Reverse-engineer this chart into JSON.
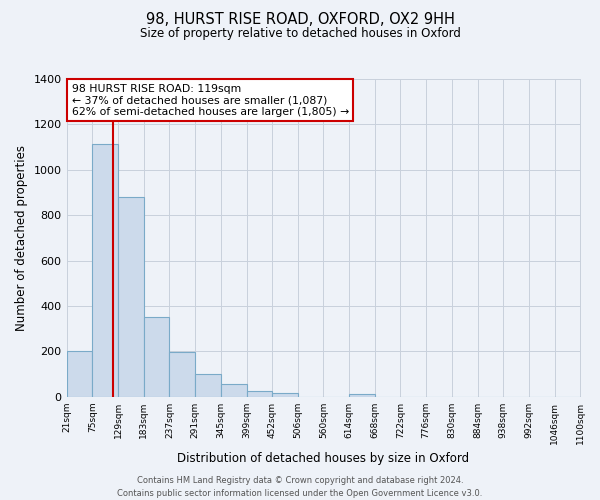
{
  "title": "98, HURST RISE ROAD, OXFORD, OX2 9HH",
  "subtitle": "Size of property relative to detached houses in Oxford",
  "xlabel": "Distribution of detached houses by size in Oxford",
  "ylabel": "Number of detached properties",
  "bar_color": "#ccdaeb",
  "bar_edge_color": "#7aaac8",
  "bin_edges": [
    21,
    75,
    129,
    183,
    237,
    291,
    345,
    399,
    452,
    506,
    560,
    614,
    668,
    722,
    776,
    830,
    884,
    938,
    992,
    1046,
    1100
  ],
  "bin_labels": [
    "21sqm",
    "75sqm",
    "129sqm",
    "183sqm",
    "237sqm",
    "291sqm",
    "345sqm",
    "399sqm",
    "452sqm",
    "506sqm",
    "560sqm",
    "614sqm",
    "668sqm",
    "722sqm",
    "776sqm",
    "830sqm",
    "884sqm",
    "938sqm",
    "992sqm",
    "1046sqm",
    "1100sqm"
  ],
  "counts": [
    200,
    1115,
    880,
    350,
    195,
    100,
    55,
    25,
    15,
    0,
    0,
    12,
    0,
    0,
    0,
    0,
    0,
    0,
    0,
    0
  ],
  "property_size": 119,
  "property_line_color": "#cc0000",
  "annotation_line1": "98 HURST RISE ROAD: 119sqm",
  "annotation_line2": "← 37% of detached houses are smaller (1,087)",
  "annotation_line3": "62% of semi-detached houses are larger (1,805) →",
  "annotation_box_color": "#ffffff",
  "annotation_box_edge": "#cc0000",
  "ylim": [
    0,
    1400
  ],
  "yticks": [
    0,
    200,
    400,
    600,
    800,
    1000,
    1200,
    1400
  ],
  "footer_line1": "Contains HM Land Registry data © Crown copyright and database right 2024.",
  "footer_line2": "Contains public sector information licensed under the Open Government Licence v3.0.",
  "bg_color": "#eef2f8",
  "grid_color": "#c8d0dc"
}
